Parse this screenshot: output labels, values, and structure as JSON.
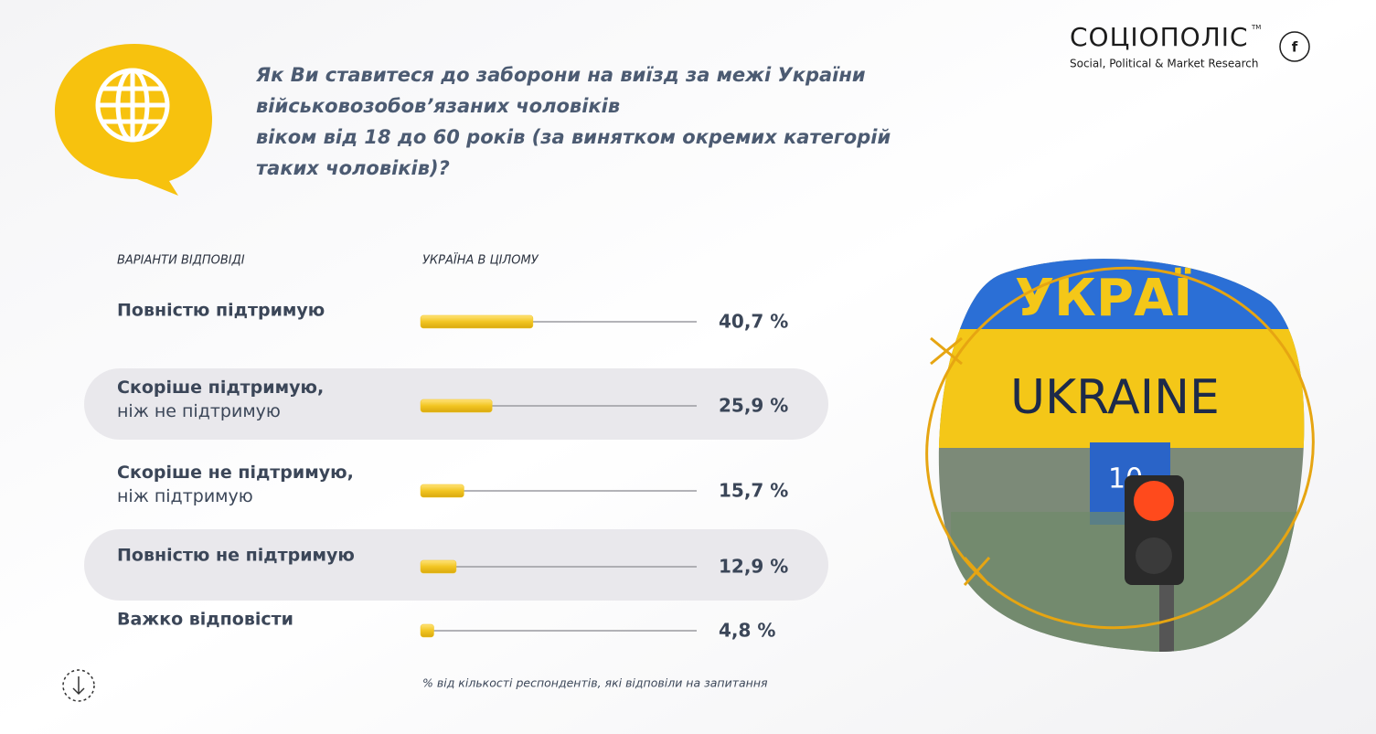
{
  "chart_data": {
    "type": "bar",
    "orientation": "horizontal",
    "title": "Як Ви ставитеся до заборони на виїзд за межі України\nвійськовозобов’язаних чоловіків\nвіком від 18 до 60 років (за винятком окремих категорій\nтаких чоловіків)?",
    "category_header": "ВАРІАНТИ ВІДПОВІДІ",
    "value_header": "УКРАЇНА В ЦІЛОМУ",
    "categories": [
      "Повністю підтримую",
      "Скоріше підтримую,\nніж не підтримую",
      "Скоріше не підтримую,\nніж підтримую",
      "Повністю не підтримую",
      "Важко відповісти"
    ],
    "values": [
      40.7,
      25.9,
      15.7,
      12.9,
      4.8
    ],
    "value_labels": [
      "40,7 %",
      "25,9 %",
      "15,7 %",
      "12,9 %",
      "4,8 %"
    ],
    "color": "#f2c521",
    "xlim": [
      0,
      100
    ],
    "footnote": "% від кількості респондентів, які відповіли на запитання"
  },
  "brand": {
    "name": "СОЦІОПОЛІС",
    "tm": "TM",
    "tagline": "Social, Political & Market Research",
    "social": "f"
  },
  "photo": {
    "sign_top": "УКРАЇ",
    "sign_main": "UKRAINE",
    "sign_number": "10"
  }
}
